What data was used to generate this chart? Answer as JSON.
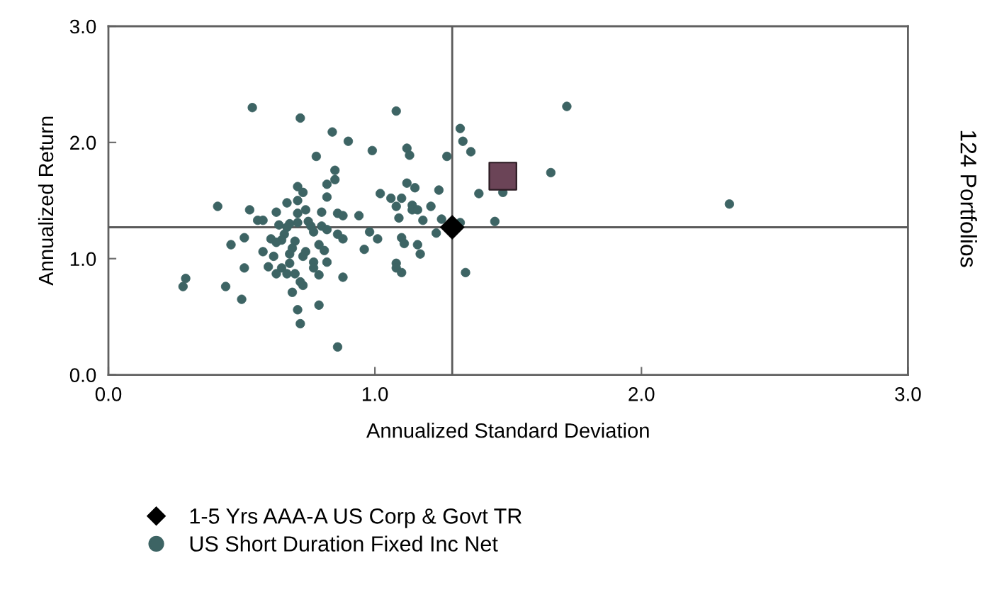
{
  "chart_data": {
    "type": "scatter",
    "xlabel": "Annualized Standard Deviation",
    "ylabel": "Annualized Return",
    "annotations": [
      "124 Portfolios"
    ],
    "xlim": [
      0,
      3
    ],
    "ylim": [
      0,
      3
    ],
    "xticks": [
      {
        "value": 0,
        "label": "0.0"
      },
      {
        "value": 1,
        "label": "1.0"
      },
      {
        "value": 2,
        "label": "2.0"
      },
      {
        "value": 3,
        "label": "3.0"
      }
    ],
    "yticks": [
      {
        "value": 0,
        "label": "0.0"
      },
      {
        "value": 1,
        "label": "1.0"
      },
      {
        "value": 2,
        "label": "2.0"
      },
      {
        "value": 3,
        "label": "3.0"
      }
    ],
    "legend": "bottom",
    "ref_lines": [
      {
        "axis": "x",
        "value": 1.29,
        "color": "#5a5a5a"
      },
      {
        "axis": "y",
        "value": 1.27,
        "color": "#5a5a5a"
      }
    ],
    "series": [
      {
        "color": "#6b4457",
        "marker": "square",
        "x": [
          1.48
        ],
        "values": [
          1.71
        ]
      },
      {
        "name": "1-5 Yrs AAA-A US Corp & Govt TR",
        "color": "#000000",
        "marker": "diamond",
        "x": [
          1.29
        ],
        "values": [
          1.27
        ]
      },
      {
        "name": "US Short Duration Fixed Inc Net",
        "color": "#3d6464",
        "marker": "circle",
        "x": [
          0.54,
          0.72,
          0.84,
          0.9,
          0.99,
          0.78,
          0.85,
          0.85,
          0.82,
          0.71,
          0.73,
          0.82,
          1.02,
          0.71,
          0.67,
          0.41,
          0.53,
          0.63,
          0.74,
          0.8,
          0.71,
          0.86,
          0.88,
          0.94,
          0.56,
          0.58,
          0.75,
          0.71,
          0.64,
          0.68,
          0.67,
          0.76,
          0.8,
          0.77,
          0.82,
          0.86,
          0.88,
          0.98,
          1.01,
          0.51,
          0.61,
          0.66,
          0.65,
          0.63,
          0.7,
          0.46,
          0.79,
          0.69,
          0.74,
          0.81,
          0.96,
          0.58,
          0.68,
          0.62,
          0.73,
          0.51,
          0.6,
          0.65,
          0.68,
          0.77,
          0.77,
          0.82,
          0.63,
          0.67,
          0.7,
          0.79,
          0.88,
          0.29,
          0.28,
          0.44,
          0.72,
          0.73,
          0.69,
          0.5,
          0.79,
          0.71,
          0.72,
          0.86,
          1.08,
          1.32,
          1.33,
          1.36,
          1.12,
          1.13,
          1.27,
          1.72,
          1.66,
          1.12,
          1.15,
          1.24,
          1.39,
          1.48,
          1.06,
          1.1,
          1.08,
          1.14,
          1.14,
          1.16,
          1.21,
          1.09,
          1.18,
          1.25,
          1.32,
          1.45,
          1.23,
          1.1,
          1.11,
          1.16,
          1.17,
          1.08,
          1.08,
          1.1,
          1.34,
          2.33
        ],
        "values": [
          2.3,
          2.21,
          2.09,
          2.01,
          1.93,
          1.88,
          1.76,
          1.68,
          1.64,
          1.62,
          1.57,
          1.53,
          1.56,
          1.5,
          1.48,
          1.45,
          1.42,
          1.4,
          1.42,
          1.4,
          1.39,
          1.39,
          1.37,
          1.37,
          1.33,
          1.33,
          1.32,
          1.31,
          1.29,
          1.3,
          1.27,
          1.28,
          1.28,
          1.23,
          1.25,
          1.21,
          1.17,
          1.23,
          1.17,
          1.18,
          1.17,
          1.21,
          1.16,
          1.14,
          1.15,
          1.12,
          1.12,
          1.09,
          1.06,
          1.07,
          1.08,
          1.06,
          1.04,
          1.02,
          1.02,
          0.92,
          0.93,
          0.92,
          0.96,
          0.97,
          0.92,
          0.97,
          0.87,
          0.87,
          0.87,
          0.86,
          0.84,
          0.83,
          0.76,
          0.76,
          0.8,
          0.77,
          0.71,
          0.65,
          0.6,
          0.56,
          0.44,
          0.24,
          2.27,
          2.12,
          2.01,
          1.92,
          1.95,
          1.89,
          1.88,
          2.31,
          1.74,
          1.65,
          1.61,
          1.59,
          1.56,
          1.57,
          1.52,
          1.52,
          1.45,
          1.46,
          1.42,
          1.42,
          1.45,
          1.35,
          1.33,
          1.34,
          1.31,
          1.32,
          1.22,
          1.18,
          1.13,
          1.12,
          1.04,
          0.96,
          0.92,
          0.88,
          0.88,
          1.47
        ]
      }
    ]
  }
}
